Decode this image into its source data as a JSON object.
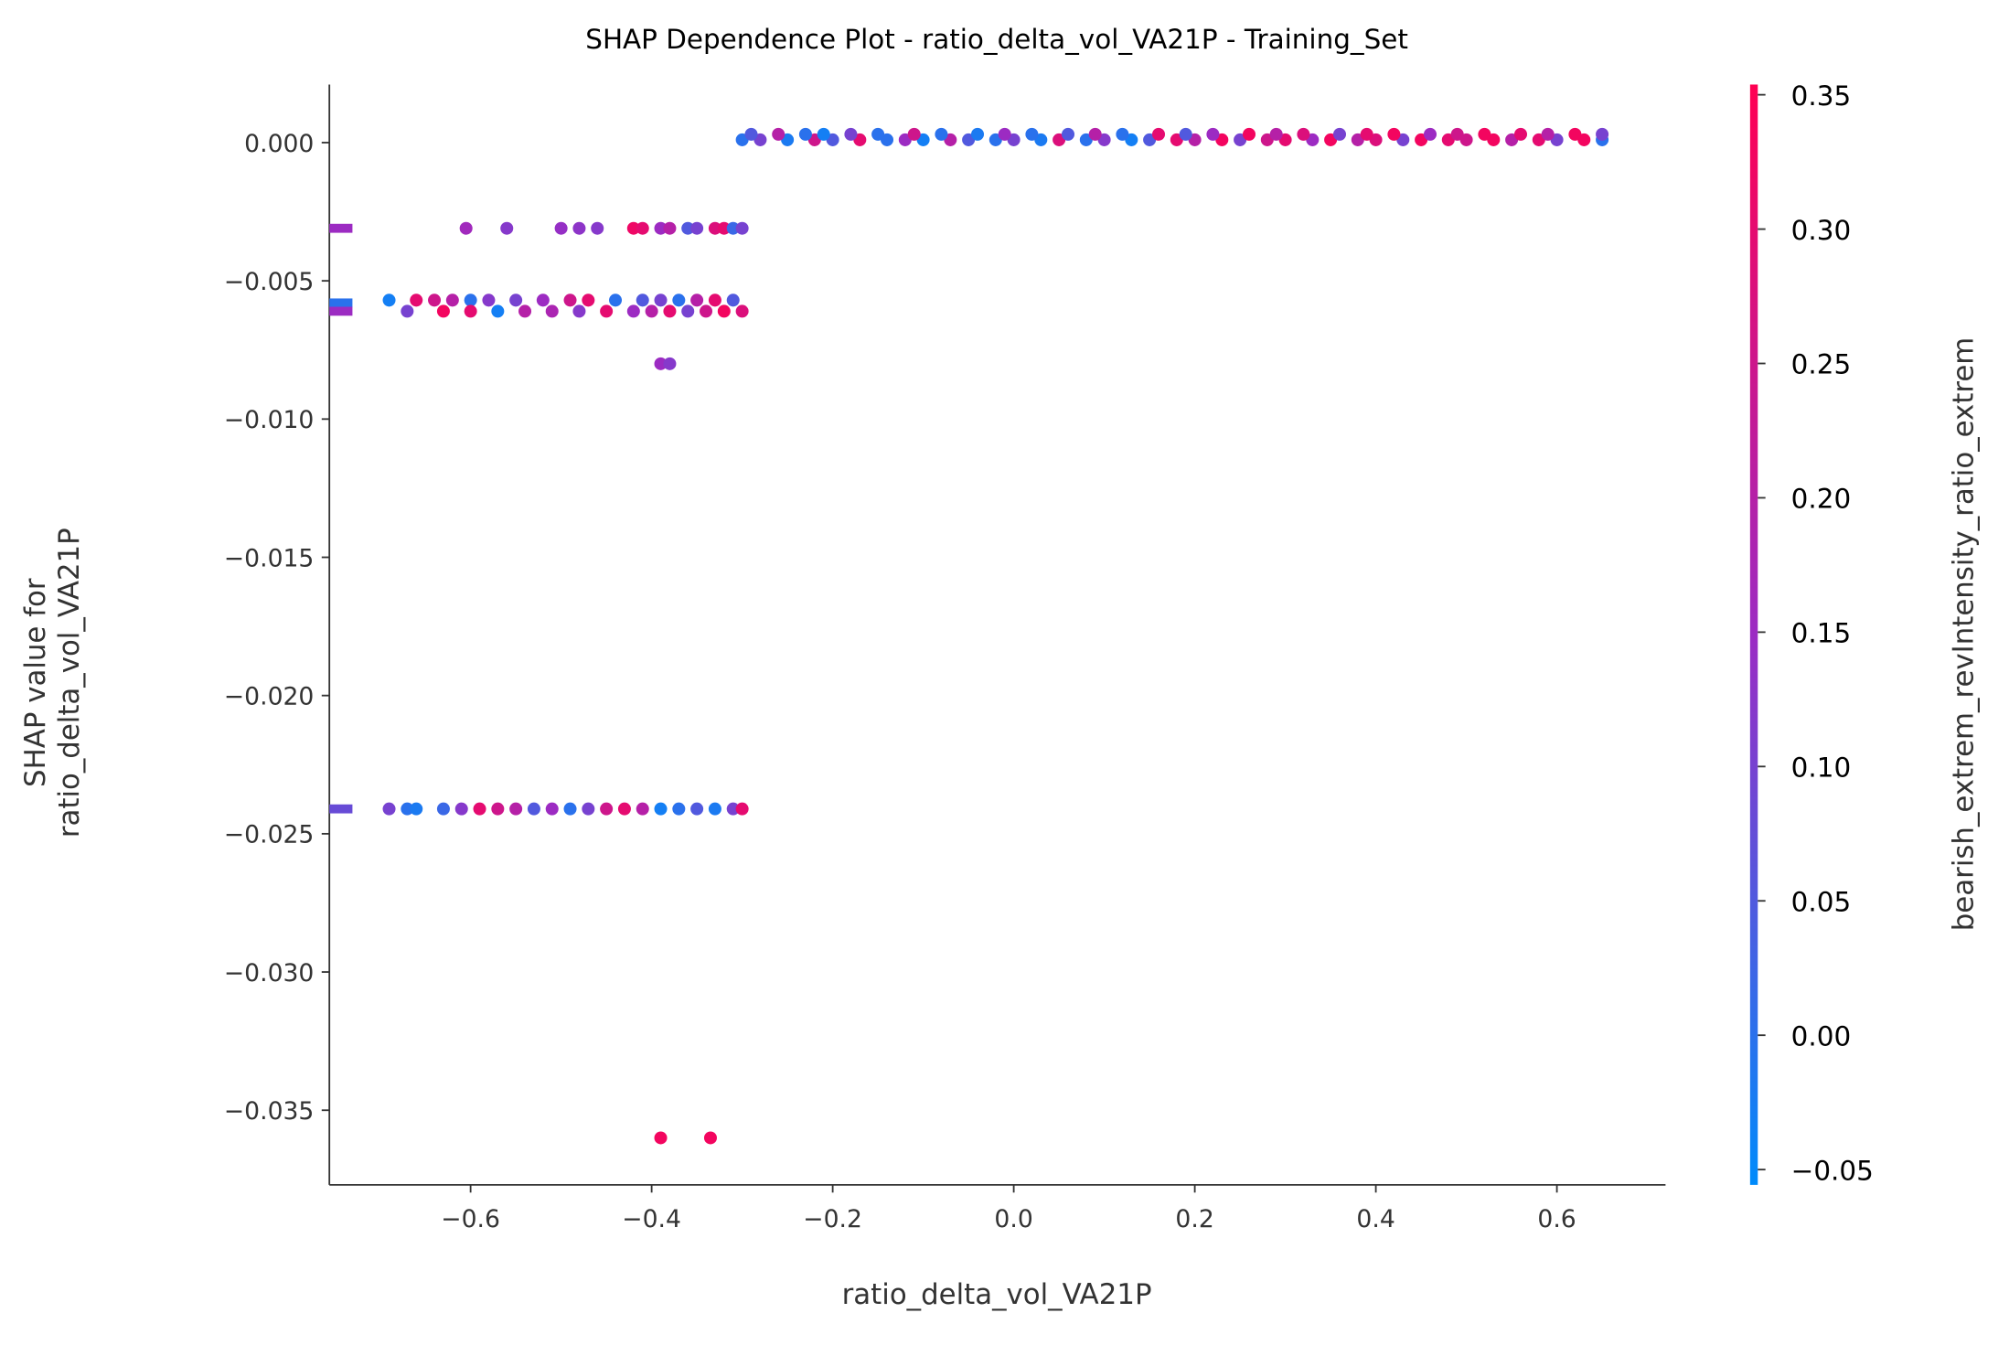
{
  "chart_data": {
    "type": "scatter",
    "title": "SHAP Dependence Plot - ratio_delta_vol_VA21P - Training_Set",
    "x_label": "ratio_delta_vol_VA21P",
    "y_label": "SHAP value for\nratio_delta_vol_VA21P",
    "color_label": "bearish_extrem_revIntensity_ratio_extrem",
    "colormap": [
      "#008bfb",
      "#9c2bc3",
      "#ff0052"
    ],
    "xlim": [
      -0.756,
      0.72
    ],
    "ylim": [
      -0.0377,
      0.0021
    ],
    "clim": [
      -0.0557,
      0.3538
    ],
    "xticks": [
      {
        "value": -0.6,
        "label": "−0.6"
      },
      {
        "value": -0.4,
        "label": "−0.4"
      },
      {
        "value": -0.2,
        "label": "−0.2"
      },
      {
        "value": 0,
        "label": "0.0"
      },
      0.2,
      0.4,
      0.6
    ],
    "yticks": [
      {
        "value": 0,
        "label": "0.000"
      },
      {
        "value": -0.005,
        "label": "−0.005"
      },
      {
        "value": -0.01,
        "label": "−0.010"
      },
      {
        "value": -0.015,
        "label": "−0.015"
      },
      {
        "value": -0.02,
        "label": "−0.020"
      },
      {
        "value": -0.025,
        "label": "−0.025"
      },
      {
        "value": -0.03,
        "label": "−0.030"
      },
      {
        "value": -0.035,
        "label": "−0.035"
      }
    ],
    "cticks": [
      0.35,
      {
        "value": 0.3,
        "label": "0.30"
      },
      0.25,
      {
        "value": 0.2,
        "label": "0.20"
      },
      0.15,
      {
        "value": 0.1,
        "label": "0.10"
      },
      0.05,
      {
        "value": 0,
        "label": "0.00"
      },
      {
        "value": -0.05,
        "label": "−0.05"
      }
    ],
    "x": [
      -0.3,
      -0.28,
      -0.25,
      -0.22,
      -0.2,
      -0.17,
      -0.14,
      -0.12,
      -0.1,
      -0.07,
      -0.05,
      -0.02,
      0.0,
      0.03,
      0.05,
      0.08,
      0.1,
      0.13,
      0.15,
      0.18,
      0.2,
      0.23,
      0.25,
      0.28,
      0.3,
      0.33,
      0.35,
      0.38,
      0.4,
      0.43,
      0.45,
      0.48,
      0.5,
      0.53,
      0.55,
      0.58,
      0.6,
      0.63,
      0.65,
      -0.29,
      -0.26,
      -0.23,
      -0.21,
      -0.18,
      -0.15,
      -0.11,
      -0.08,
      -0.04,
      -0.01,
      0.02,
      0.06,
      0.09,
      0.12,
      0.16,
      0.19,
      0.22,
      0.26,
      0.29,
      0.32,
      0.36,
      0.39,
      0.42,
      0.46,
      0.49,
      0.52,
      0.56,
      0.59,
      0.62,
      0.65,
      -0.605,
      -0.56,
      -0.5,
      -0.48,
      -0.46,
      -0.42,
      -0.41,
      -0.39,
      -0.38,
      -0.36,
      -0.35,
      -0.33,
      -0.32,
      -0.31,
      -0.3,
      -0.69,
      -0.66,
      -0.64,
      -0.62,
      -0.6,
      -0.58,
      -0.55,
      -0.52,
      -0.49,
      -0.47,
      -0.44,
      -0.41,
      -0.39,
      -0.37,
      -0.35,
      -0.33,
      -0.31,
      -0.67,
      -0.63,
      -0.6,
      -0.57,
      -0.54,
      -0.51,
      -0.48,
      -0.45,
      -0.42,
      -0.4,
      -0.38,
      -0.36,
      -0.34,
      -0.32,
      -0.3,
      -0.39,
      -0.38,
      -0.69,
      -0.67,
      -0.66,
      -0.63,
      -0.61,
      -0.59,
      -0.57,
      -0.55,
      -0.53,
      -0.51,
      -0.49,
      -0.47,
      -0.45,
      -0.43,
      -0.41,
      -0.39,
      -0.37,
      -0.35,
      -0.33,
      -0.31,
      -0.3,
      -0.39,
      -0.335
    ],
    "values": [
      0.0001,
      0.0001,
      0.0001,
      0.0001,
      0.0001,
      0.0001,
      0.0001,
      0.0001,
      0.0001,
      0.0001,
      0.0001,
      0.0001,
      0.0001,
      0.0001,
      0.0001,
      0.0001,
      0.0001,
      0.0001,
      0.0001,
      0.0001,
      0.0001,
      0.0001,
      0.0001,
      0.0001,
      0.0001,
      0.0001,
      0.0001,
      0.0001,
      0.0001,
      0.0001,
      0.0001,
      0.0001,
      0.0001,
      0.0001,
      0.0001,
      0.0001,
      0.0001,
      0.0001,
      0.0001,
      0.0003,
      0.0003,
      0.0003,
      0.0003,
      0.0003,
      0.0003,
      0.0003,
      0.0003,
      0.0003,
      0.0003,
      0.0003,
      0.0003,
      0.0003,
      0.0003,
      0.0003,
      0.0003,
      0.0003,
      0.0003,
      0.0003,
      0.0003,
      0.0003,
      0.0003,
      0.0003,
      0.0003,
      0.0003,
      0.0003,
      0.0003,
      0.0003,
      0.0003,
      0.0003,
      -0.0031,
      -0.0031,
      -0.0031,
      -0.0031,
      -0.0031,
      -0.0031,
      -0.0031,
      -0.0031,
      -0.0031,
      -0.0031,
      -0.0031,
      -0.0031,
      -0.0031,
      -0.0031,
      -0.0031,
      -0.0057,
      -0.0057,
      -0.0057,
      -0.0057,
      -0.0057,
      -0.0057,
      -0.0057,
      -0.0057,
      -0.0057,
      -0.0057,
      -0.0057,
      -0.0057,
      -0.0057,
      -0.0057,
      -0.0057,
      -0.0057,
      -0.0057,
      -0.0061,
      -0.0061,
      -0.0061,
      -0.0061,
      -0.0061,
      -0.0061,
      -0.0061,
      -0.0061,
      -0.0061,
      -0.0061,
      -0.0061,
      -0.0061,
      -0.0061,
      -0.0061,
      -0.0061,
      -0.008,
      -0.008,
      -0.0241,
      -0.0241,
      -0.0241,
      -0.0241,
      -0.0241,
      -0.0241,
      -0.0241,
      -0.0241,
      -0.0241,
      -0.0241,
      -0.0241,
      -0.0241,
      -0.0241,
      -0.0241,
      -0.0241,
      -0.0241,
      -0.0241,
      -0.0241,
      -0.0241,
      -0.0241,
      -0.0241,
      -0.036,
      -0.036
    ],
    "color_values": [
      0.0,
      0.1,
      -0.02,
      0.25,
      0.05,
      0.3,
      0.0,
      0.15,
      -0.03,
      0.2,
      0.05,
      0.0,
      0.1,
      -0.02,
      0.28,
      0.0,
      0.12,
      -0.03,
      0.05,
      0.3,
      0.2,
      0.33,
      0.1,
      0.25,
      0.3,
      0.15,
      0.33,
      0.2,
      0.28,
      0.1,
      0.33,
      0.3,
      0.25,
      0.33,
      0.2,
      0.3,
      0.1,
      0.33,
      0.0,
      0.05,
      0.2,
      0.0,
      -0.03,
      0.1,
      0.0,
      0.25,
      0.0,
      -0.02,
      0.15,
      0.0,
      0.05,
      0.2,
      0.0,
      0.3,
      0.05,
      0.15,
      0.33,
      0.2,
      0.28,
      0.1,
      0.3,
      0.33,
      0.15,
      0.25,
      0.33,
      0.3,
      0.2,
      0.33,
      0.1,
      0.16,
      0.12,
      0.14,
      0.13,
      0.12,
      0.32,
      0.3,
      0.15,
      0.2,
      0.05,
      0.1,
      0.28,
      0.3,
      0.02,
      0.1,
      -0.03,
      0.3,
      0.25,
      0.2,
      0.0,
      0.12,
      0.1,
      0.15,
      0.25,
      0.3,
      0.0,
      0.05,
      0.1,
      0.0,
      0.2,
      0.3,
      0.05,
      0.1,
      0.33,
      0.3,
      -0.03,
      0.2,
      0.18,
      0.12,
      0.3,
      0.15,
      0.2,
      0.3,
      0.1,
      0.25,
      0.33,
      0.28,
      0.15,
      0.12,
      0.1,
      0.0,
      -0.02,
      0.02,
      0.12,
      0.3,
      0.25,
      0.2,
      0.05,
      0.15,
      0.0,
      0.1,
      0.25,
      0.3,
      0.2,
      -0.03,
      0.0,
      0.05,
      -0.02,
      0.1,
      0.3,
      0.33,
      0.33
    ],
    "missing_values": [
      -0.0031,
      -0.0058,
      -0.0061,
      -0.0241
    ],
    "missing_color_values": [
      0.15,
      0.0,
      0.15,
      0.08
    ]
  }
}
